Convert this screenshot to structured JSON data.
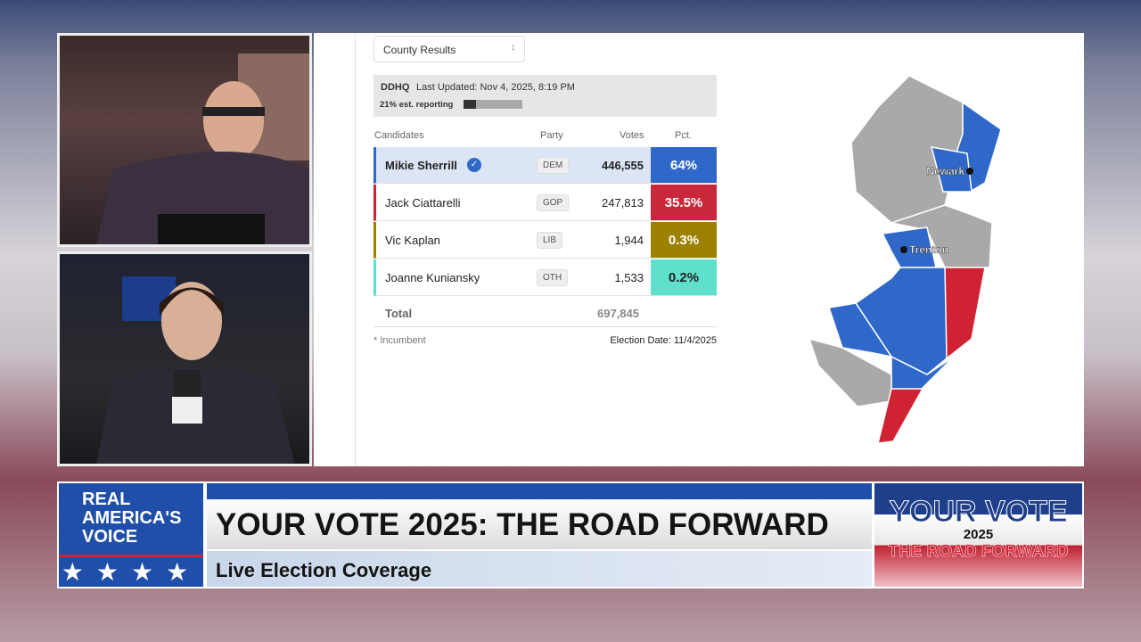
{
  "selector": "County Results",
  "status": {
    "source": "DDHQ",
    "updated": "Last Updated: Nov 4, 2025, 8:19 PM",
    "reporting_text": "21% est. reporting",
    "reporting_pct": 21
  },
  "table": {
    "headers": [
      "Candidates",
      "Party",
      "Votes",
      "Pct."
    ],
    "rows": [
      [
        "Mikie Sherrill",
        "DEM",
        "446,555",
        "64%"
      ],
      [
        "Jack Ciattarelli",
        "GOP",
        "247,813",
        "35.5%"
      ],
      [
        "Vic Kaplan",
        "LIB",
        "1,944",
        "0.3%"
      ],
      [
        "Joanne Kuniansky",
        "OTH",
        "1,533",
        "0.2%"
      ]
    ],
    "total_label": "Total",
    "total": "697,845"
  },
  "footnote": "* Incumbent",
  "election_date": "Election Date: 11/4/2025",
  "map": {
    "cities": [
      "Newark",
      "Trenton"
    ]
  },
  "banner": {
    "network": [
      "REAL",
      "AMERICA'S",
      "VOICE"
    ],
    "title": "YOUR VOTE 2025: THE ROAD FORWARD",
    "subtitle": "Live Election Coverage",
    "logo": [
      "YOUR VOTE",
      "2025",
      "THE ROAD FORWARD"
    ]
  }
}
